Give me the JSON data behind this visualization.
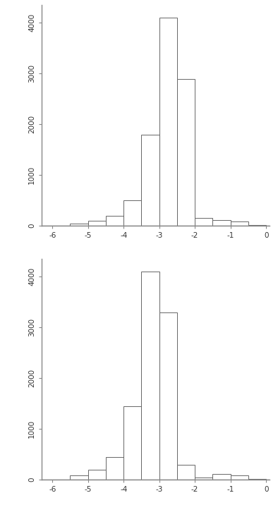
{
  "plot1": {
    "bin_edges": [
      -6.0,
      -5.5,
      -5.0,
      -4.5,
      -4.0,
      -3.5,
      -3.0,
      -2.5,
      -2.0,
      -1.5,
      -1.0,
      -0.5,
      0.0
    ],
    "counts": [
      5,
      50,
      100,
      200,
      500,
      1800,
      4100,
      2900,
      150,
      120,
      80,
      10
    ],
    "xlim": [
      -6.3,
      0.1
    ],
    "ylim": [
      0,
      4350
    ],
    "yticks": [
      0,
      1000,
      2000,
      3000,
      4000
    ],
    "xticks": [
      -6,
      -5,
      -4,
      -3,
      -2,
      -1,
      0
    ]
  },
  "plot2": {
    "bin_edges": [
      -6.0,
      -5.5,
      -5.0,
      -4.5,
      -4.0,
      -3.5,
      -3.0,
      -2.5,
      -2.0,
      -1.5,
      -1.0,
      -0.5,
      0.0
    ],
    "counts": [
      3,
      80,
      200,
      450,
      1450,
      4100,
      3300,
      300,
      50,
      120,
      80,
      10
    ],
    "xlim": [
      -6.3,
      0.1
    ],
    "ylim": [
      0,
      4350
    ],
    "yticks": [
      0,
      1000,
      2000,
      3000,
      4000
    ],
    "xticks": [
      -6,
      -5,
      -4,
      -3,
      -2,
      -1,
      0
    ]
  },
  "bar_facecolor": "#ffffff",
  "bar_edgecolor": "#666666",
  "bg_color": "#ffffff",
  "tick_fontsize": 7.5,
  "spine_color": "#888888",
  "axis_linewidth": 1.0
}
